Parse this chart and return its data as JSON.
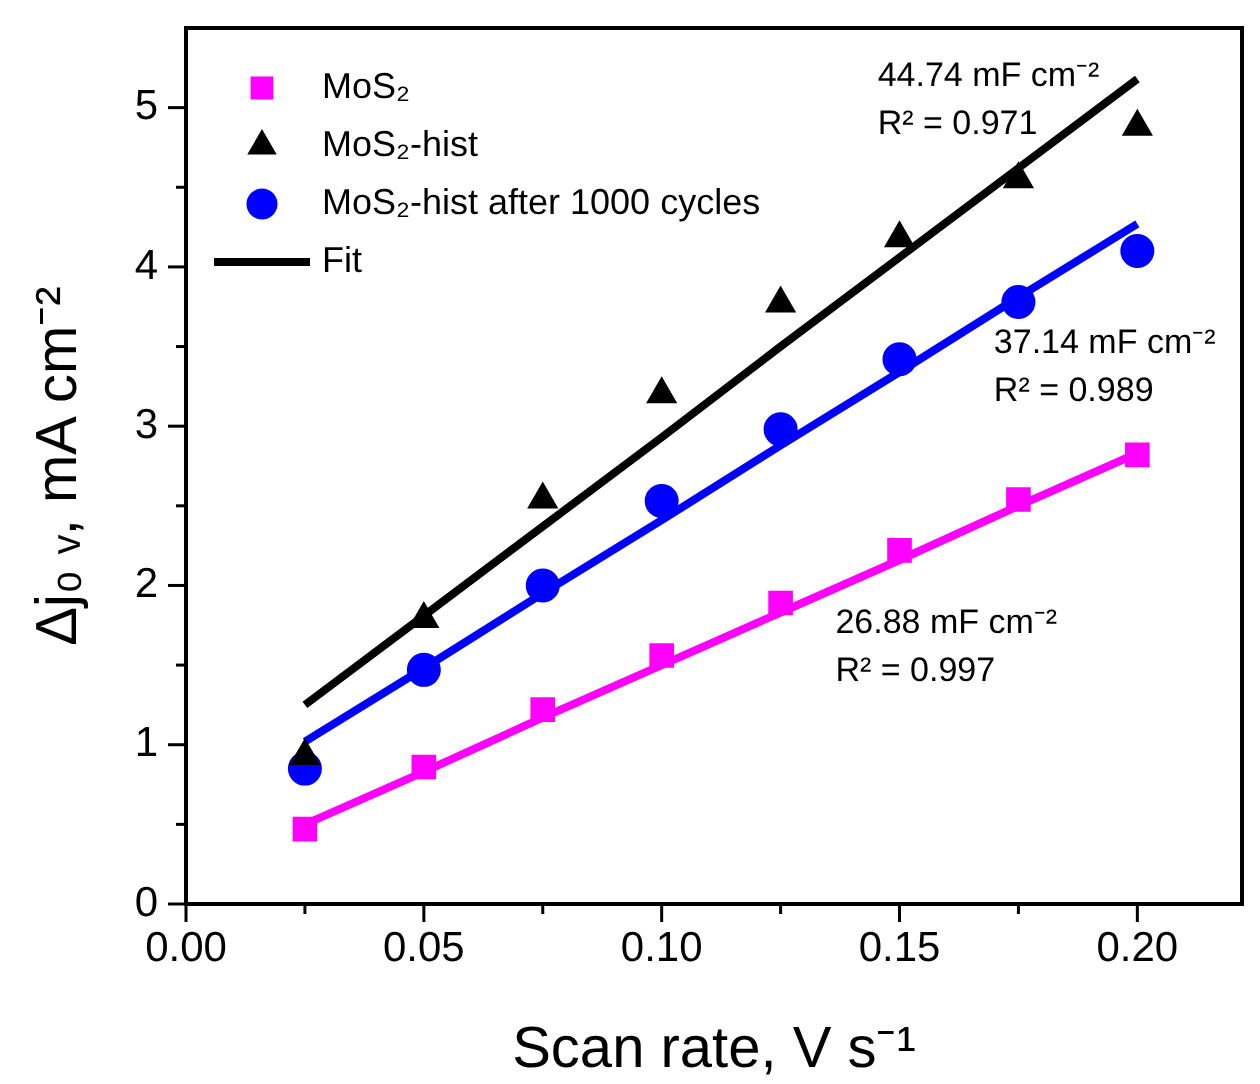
{
  "chart_data": {
    "type": "scatter",
    "xlabel": "Scan rate, V s⁻¹",
    "ylabel": "Δj₀ ᵥ, mA cm⁻²",
    "x": [
      0.025,
      0.05,
      0.075,
      0.1,
      0.125,
      0.15,
      0.175,
      0.2
    ],
    "series": [
      {
        "name": "MoS₂",
        "color": "#ff00ff",
        "marker": "square",
        "values": [
          0.47,
          0.86,
          1.22,
          1.56,
          1.89,
          2.22,
          2.54,
          2.82
        ]
      },
      {
        "name": "MoS₂-hist",
        "color": "#000000",
        "marker": "triangle",
        "values": [
          0.93,
          1.79,
          2.54,
          3.2,
          3.77,
          4.18,
          4.55,
          4.88
        ]
      },
      {
        "name": "MoS₂-hist after 1000 cycles",
        "color": "#0000ff",
        "marker": "circle",
        "values": [
          0.85,
          1.47,
          2.0,
          2.53,
          2.98,
          3.42,
          3.78,
          4.1
        ]
      },
      {
        "name": "Fit",
        "type": "line",
        "color": "#000000",
        "values": [
          1.25,
          1.81,
          2.37,
          2.93,
          3.5,
          4.06,
          4.62,
          5.18
        ]
      },
      {
        "type": "line",
        "color": "#0000ff",
        "values": [
          1.02,
          1.48,
          1.95,
          2.41,
          2.88,
          3.34,
          3.81,
          4.27
        ]
      },
      {
        "type": "line",
        "color": "#ff00ff",
        "values": [
          0.5,
          0.83,
          1.17,
          1.5,
          1.83,
          2.16,
          2.5,
          2.83
        ]
      }
    ],
    "annotations": [
      "44.74 mF cm⁻²\nR² = 0.971",
      "37.14 mF cm⁻²\nR² = 0.989",
      "26.88 mF cm⁻²\nR² = 0.997"
    ],
    "xlim": [
      0,
      0.222
    ],
    "xticks": [
      {
        "value": 0,
        "label": "0.00"
      },
      0.05,
      {
        "value": 0.1,
        "label": "0.10"
      },
      0.15,
      {
        "value": 0.2,
        "label": "0.20"
      }
    ],
    "ylim": [
      0,
      5.5
    ],
    "yticks": [
      0,
      1,
      2,
      3,
      4,
      5
    ],
    "legend": "top left",
    "grid": false
  }
}
